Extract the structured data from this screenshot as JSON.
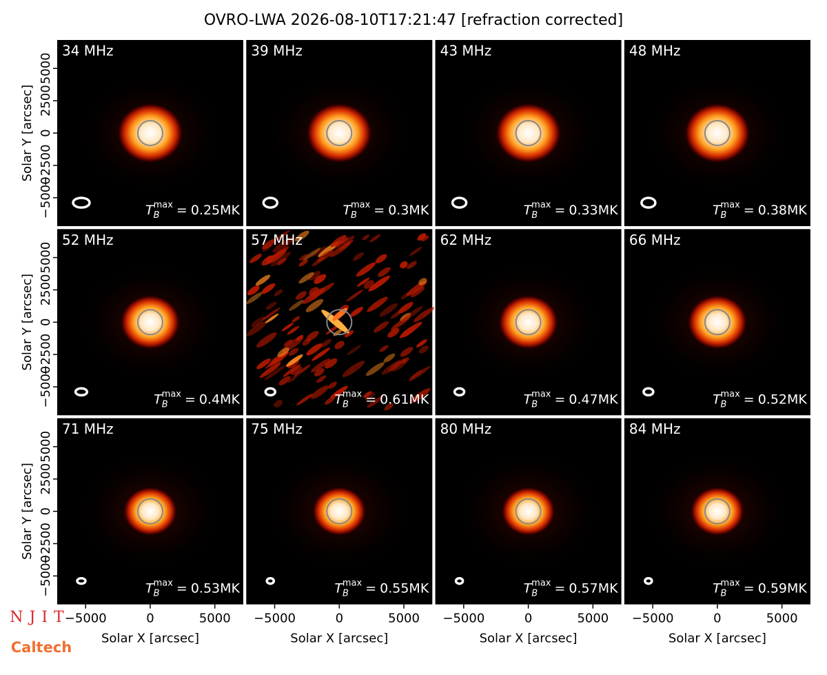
{
  "chart_data": {
    "type": "image-grid",
    "title": "OVRO-LWA 2026-08-10T17:21:47 [refraction corrected]",
    "xlabel": "Solar X [arcsec]",
    "ylabel": "Solar Y [arcsec]",
    "xlim": [
      -7200,
      7200
    ],
    "ylim": [
      -7200,
      7200
    ],
    "xticks": [
      {
        "value": -5000,
        "label": "−5000"
      },
      0,
      5000
    ],
    "yticks": [
      {
        "value": -5000,
        "label": "−5000"
      },
      {
        "value": -2500,
        "label": "−2500"
      },
      0,
      2500,
      5000
    ],
    "tmax_symbol": "T",
    "tmax_sub": "B",
    "tmax_sup": "max",
    "equals": "=",
    "panels": [
      {
        "frequency": "34 MHz",
        "tmax": "0.25MK"
      },
      {
        "frequency": "39 MHz",
        "tmax": "0.3MK"
      },
      {
        "frequency": "43 MHz",
        "tmax": "0.33MK"
      },
      {
        "frequency": "48 MHz",
        "tmax": "0.38MK"
      },
      {
        "frequency": "52 MHz",
        "tmax": "0.4MK"
      },
      {
        "frequency": "57 MHz",
        "tmax": "0.61MK"
      },
      {
        "frequency": "62 MHz",
        "tmax": "0.47MK"
      },
      {
        "frequency": "66 MHz",
        "tmax": "0.52MK"
      },
      {
        "frequency": "71 MHz",
        "tmax": "0.53MK"
      },
      {
        "frequency": "75 MHz",
        "tmax": "0.55MK"
      },
      {
        "frequency": "80 MHz",
        "tmax": "0.57MK"
      },
      {
        "frequency": "84 MHz",
        "tmax": "0.59MK"
      }
    ],
    "logos": [
      "NJIT",
      "Caltech"
    ]
  }
}
